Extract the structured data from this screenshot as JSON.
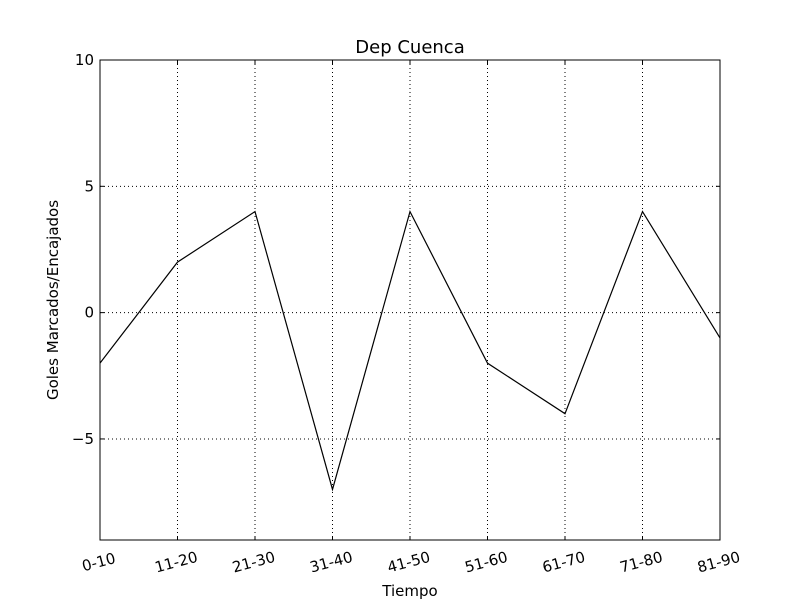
{
  "chart_data": {
    "type": "line",
    "title": "Dep Cuenca",
    "xlabel": "Tiempo",
    "ylabel": "Goles Marcados/Encajados",
    "categories": [
      "0-10",
      "11-20",
      "21-30",
      "31-40",
      "41-50",
      "51-60",
      "61-70",
      "71-80",
      "81-90"
    ],
    "series": [
      {
        "values": [
          -2,
          2,
          4,
          -7,
          4,
          -2,
          -4,
          4,
          -1
        ],
        "color": "#000000"
      }
    ],
    "ylim": [
      -9,
      10
    ],
    "yticks": [
      {
        "value": 10,
        "label": "10"
      },
      {
        "value": 5,
        "label": "5"
      },
      {
        "value": 0,
        "label": "0"
      },
      {
        "value": -5,
        "label": "−5"
      }
    ],
    "grid": true,
    "x_tick_rotation": "slanted"
  }
}
